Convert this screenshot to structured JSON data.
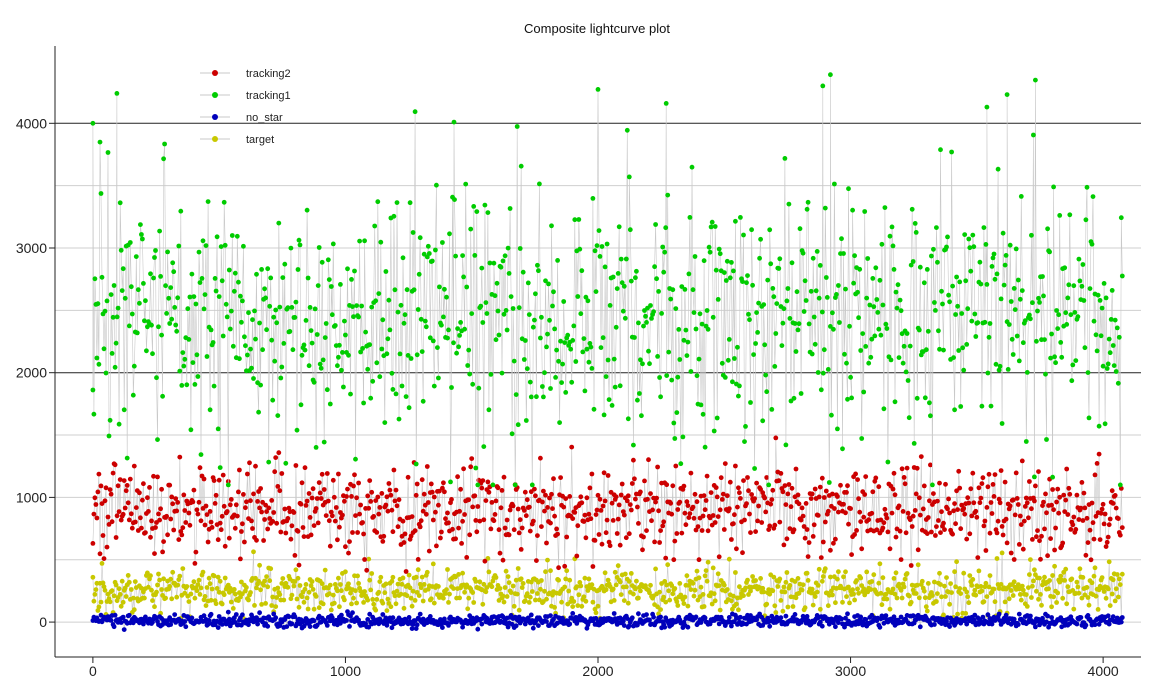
{
  "chart_data": {
    "type": "scatter",
    "title": "Composite lightcurve plot",
    "xlabel": "",
    "ylabel": "",
    "xlim": [
      -150,
      4150
    ],
    "ylim": [
      -280,
      4620
    ],
    "x_ticks": [
      0,
      1000,
      2000,
      3000,
      4000
    ],
    "y_ticks": [
      0,
      1000,
      2000,
      3000,
      4000
    ],
    "grid": "horizontal",
    "legend_position": "top-left",
    "connecting_line_color": "#c9c9c9",
    "series": [
      {
        "name": "tracking2",
        "color": "#cc0000",
        "n_points": 4080,
        "mean": 900,
        "spread": 180,
        "min": 400,
        "max": 1680
      },
      {
        "name": "tracking1",
        "color": "#00cc00",
        "n_points": 4080,
        "mean": 2450,
        "spread": 480,
        "min": 1100,
        "max": 4380
      },
      {
        "name": "no_star",
        "color": "#0000bb",
        "n_points": 4080,
        "mean": 10,
        "spread": 25,
        "min": -60,
        "max": 90
      },
      {
        "name": "target",
        "color": "#c8c800",
        "n_points": 4080,
        "mean": 250,
        "spread": 90,
        "min": 30,
        "max": 600
      }
    ],
    "notable_points": {
      "tracking1": [
        [
          0,
          4000
        ],
        [
          95,
          4240
        ],
        [
          1430,
          4010
        ],
        [
          2270,
          4160
        ],
        [
          2890,
          4300
        ],
        [
          2920,
          4390
        ],
        [
          3620,
          4230
        ],
        [
          3540,
          4130
        ]
      ]
    }
  }
}
